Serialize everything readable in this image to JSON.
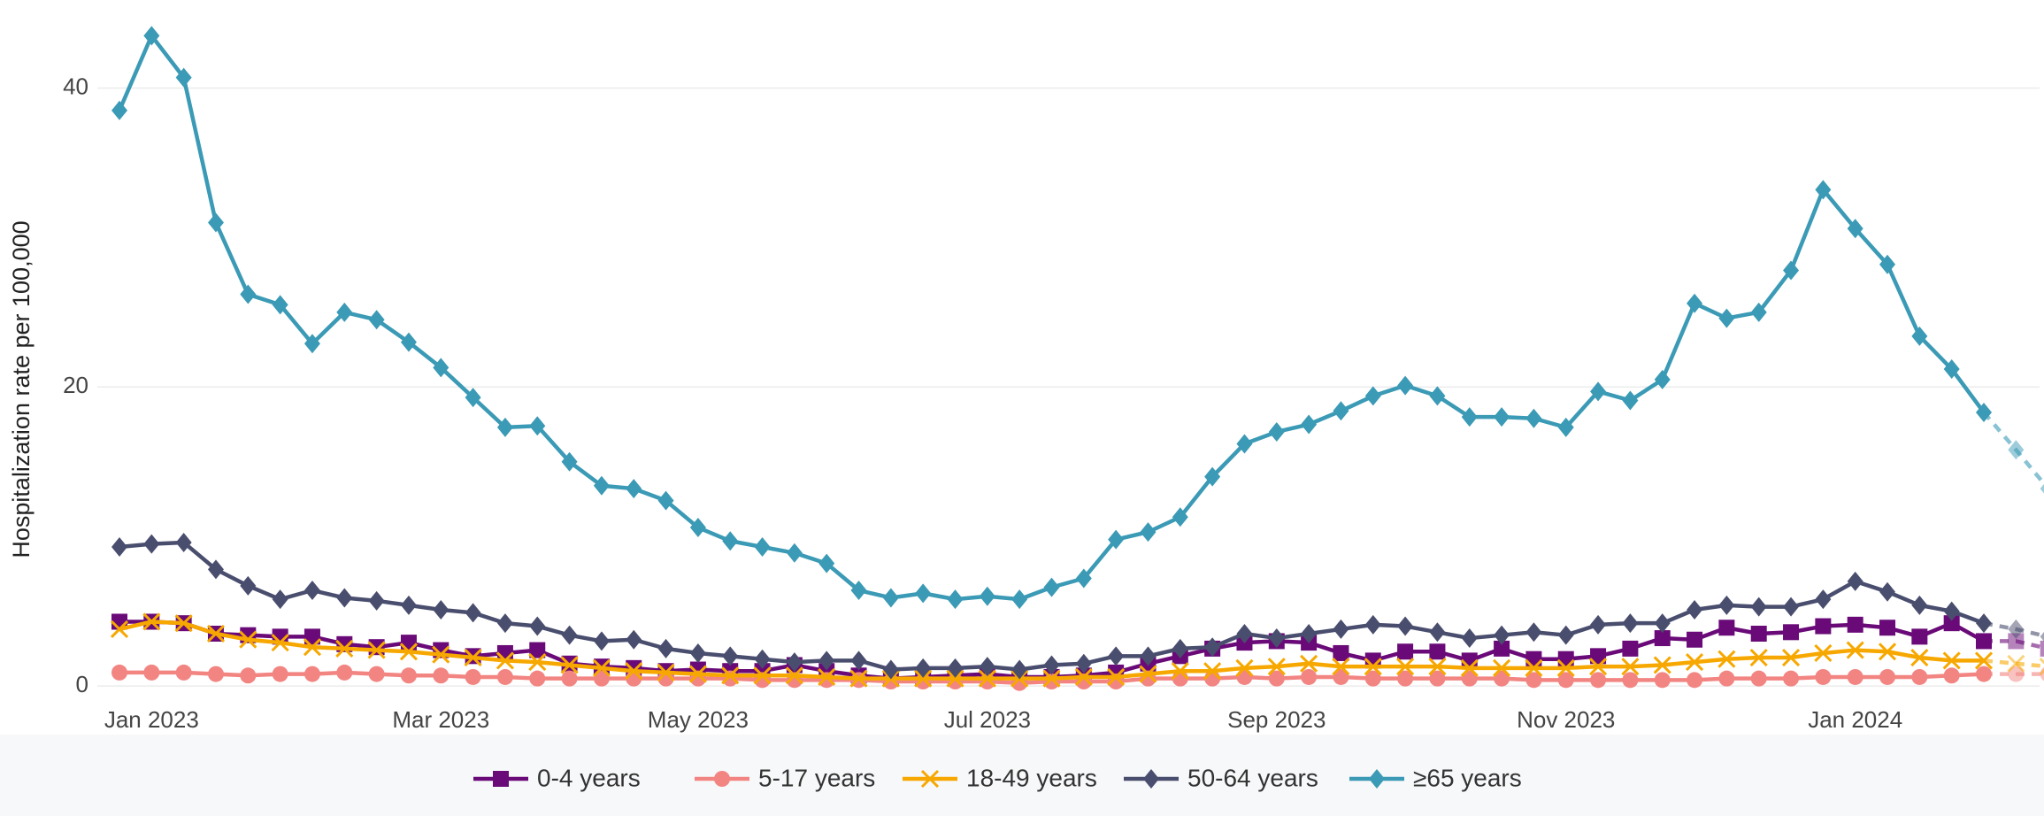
{
  "chart_data": {
    "type": "line",
    "y_label": "Hospitalization rate per 100,000",
    "categories": [
      null,
      "Jan 2023",
      null,
      null,
      null,
      null,
      null,
      null,
      null,
      null,
      "Mar 2023",
      null,
      null,
      null,
      null,
      null,
      null,
      null,
      "May 2023",
      null,
      null,
      null,
      null,
      null,
      null,
      null,
      null,
      "Jul 2023",
      null,
      null,
      null,
      null,
      null,
      null,
      null,
      null,
      "Sep 2023",
      null,
      null,
      null,
      null,
      null,
      null,
      null,
      null,
      "Nov 2023",
      null,
      null,
      null,
      null,
      null,
      null,
      null,
      null,
      "Jan 2024",
      null,
      null,
      null,
      null,
      null,
      null
    ],
    "ylim": [
      -1,
      45
    ],
    "yticks": [
      0,
      20,
      40
    ],
    "grid": true,
    "legend": "bottom",
    "dashed_from_index": 58,
    "series": [
      {
        "name": "0-4 years",
        "color": "#6a0a78",
        "marker": "square",
        "values": [
          4.3,
          4.3,
          4.2,
          3.5,
          3.4,
          3.3,
          3.3,
          2.8,
          2.6,
          2.9,
          2.4,
          2.0,
          2.2,
          2.4,
          1.5,
          1.3,
          1.2,
          1.0,
          1.1,
          1.0,
          1.0,
          1.4,
          1.0,
          0.7,
          0.5,
          0.6,
          0.7,
          0.8,
          0.6,
          0.6,
          0.7,
          0.9,
          1.5,
          2.0,
          2.5,
          2.9,
          3.0,
          2.9,
          2.2,
          1.7,
          2.3,
          2.3,
          1.7,
          2.5,
          1.8,
          1.8,
          2.0,
          2.5,
          3.2,
          3.1,
          3.9,
          3.5,
          3.6,
          4.0,
          4.1,
          3.9,
          3.3,
          4.2,
          3.0,
          3.0,
          2.5
        ]
      },
      {
        "name": "5-17 years",
        "color": "#f28582",
        "marker": "circle",
        "values": [
          0.9,
          0.9,
          0.9,
          0.8,
          0.7,
          0.8,
          0.8,
          0.9,
          0.8,
          0.7,
          0.7,
          0.6,
          0.6,
          0.5,
          0.5,
          0.5,
          0.5,
          0.5,
          0.5,
          0.5,
          0.4,
          0.4,
          0.4,
          0.4,
          0.3,
          0.3,
          0.3,
          0.3,
          0.2,
          0.3,
          0.3,
          0.3,
          0.5,
          0.5,
          0.5,
          0.6,
          0.5,
          0.6,
          0.6,
          0.5,
          0.5,
          0.5,
          0.5,
          0.5,
          0.4,
          0.4,
          0.4,
          0.4,
          0.4,
          0.4,
          0.5,
          0.5,
          0.5,
          0.6,
          0.6,
          0.6,
          0.6,
          0.7,
          0.8,
          0.8,
          0.8
        ]
      },
      {
        "name": "18-49 years",
        "color": "#f7a800",
        "marker": "x",
        "values": [
          3.8,
          4.3,
          4.2,
          3.5,
          3.1,
          2.9,
          2.6,
          2.5,
          2.4,
          2.3,
          2.1,
          1.9,
          1.7,
          1.6,
          1.4,
          1.2,
          1.0,
          0.9,
          0.8,
          0.7,
          0.7,
          0.7,
          0.6,
          0.5,
          0.5,
          0.5,
          0.5,
          0.5,
          0.5,
          0.5,
          0.6,
          0.6,
          0.8,
          1.0,
          1.0,
          1.2,
          1.3,
          1.5,
          1.3,
          1.3,
          1.3,
          1.3,
          1.2,
          1.2,
          1.2,
          1.2,
          1.3,
          1.3,
          1.4,
          1.6,
          1.8,
          1.9,
          1.9,
          2.2,
          2.4,
          2.3,
          1.9,
          1.7,
          1.7,
          1.5,
          1.3
        ]
      },
      {
        "name": "50-64 years",
        "color": "#4a4e6e",
        "marker": "diamond",
        "values": [
          9.3,
          9.5,
          9.6,
          7.8,
          6.7,
          5.8,
          6.4,
          5.9,
          5.7,
          5.4,
          5.1,
          4.9,
          4.2,
          4.0,
          3.4,
          3.0,
          3.1,
          2.5,
          2.2,
          2.0,
          1.8,
          1.6,
          1.7,
          1.7,
          1.1,
          1.2,
          1.2,
          1.3,
          1.1,
          1.4,
          1.5,
          2.0,
          2.0,
          2.5,
          2.6,
          3.5,
          3.2,
          3.5,
          3.8,
          4.1,
          4.0,
          3.6,
          3.2,
          3.4,
          3.6,
          3.4,
          4.1,
          4.2,
          4.2,
          5.1,
          5.4,
          5.3,
          5.3,
          5.8,
          7.0,
          6.3,
          5.4,
          5.0,
          4.2,
          3.8,
          3.3
        ]
      },
      {
        "name": "≥65 years",
        "color": "#3b9ab5",
        "marker": "diamond",
        "values": [
          38.5,
          43.5,
          40.7,
          31,
          26.2,
          25.5,
          22.9,
          25,
          24.5,
          23,
          21.3,
          19.3,
          17.3,
          17.4,
          15,
          13.4,
          13.2,
          12.4,
          10.6,
          9.7,
          9.3,
          8.9,
          8.2,
          6.4,
          5.9,
          6.2,
          5.8,
          6,
          5.8,
          6.6,
          7.2,
          9.8,
          10.3,
          11.3,
          14,
          16.2,
          17,
          17.5,
          18.4,
          19.4,
          20.1,
          19.4,
          18,
          18,
          17.9,
          17.3,
          19.7,
          19.1,
          20.5,
          25.6,
          24.6,
          25,
          27.8,
          33.2,
          30.6,
          28.2,
          23.4,
          21.2,
          18.3,
          15.8,
          13.2
        ]
      }
    ]
  }
}
